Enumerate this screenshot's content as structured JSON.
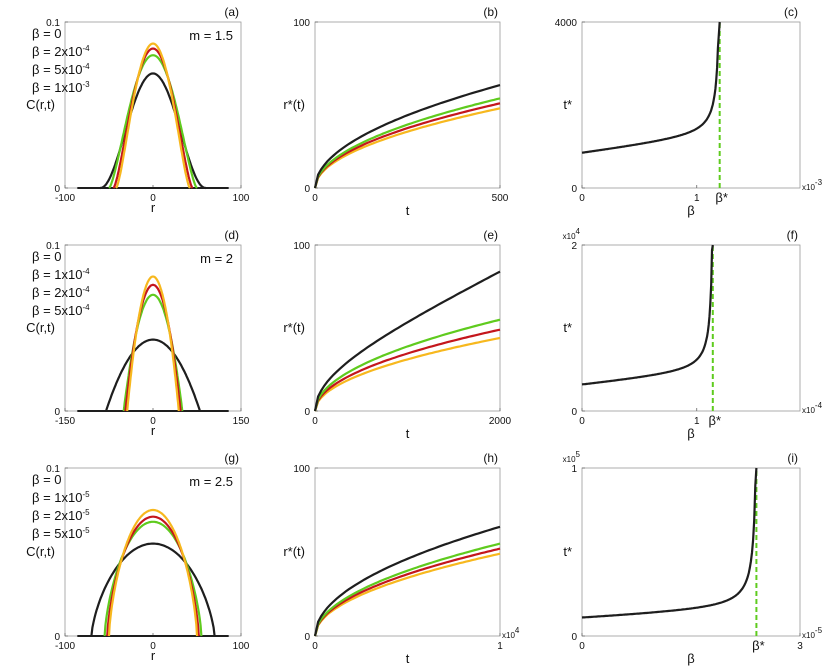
{
  "colors": {
    "orange": "#F7B81E",
    "red": "#C4161C",
    "green": "#5FCB1E",
    "black": "#1E1E1E"
  },
  "chart_data": [
    {
      "type": "line",
      "panel": "(a)",
      "kind": "profile",
      "xlabel": "r",
      "ylabel": "C(r,t)",
      "xlim": [
        -100,
        100
      ],
      "ylim": [
        0,
        0.1
      ],
      "xticks": [
        "-100",
        "0",
        "100"
      ],
      "yticks": [
        "0",
        "0.1"
      ],
      "annotation": "m = 1.5",
      "series": [
        {
          "name": "β = 0",
          "peak": 0.087,
          "halfwidth": 42,
          "shape": "m15"
        },
        {
          "name": "β = 2x10⁻⁴",
          "peak": 0.084,
          "halfwidth": 45,
          "shape": "m15"
        },
        {
          "name": "β = 5x10⁻⁴",
          "peak": 0.08,
          "halfwidth": 50,
          "shape": "m15"
        },
        {
          "name": "β = 1x10⁻³",
          "peak": 0.069,
          "halfwidth": 60,
          "shape": "m15"
        }
      ],
      "legend": [
        "β = 0",
        "β = 2x10",
        "β = 5x10",
        "β = 1x10"
      ],
      "legend_exp": [
        "-4",
        "-4",
        "-3"
      ]
    },
    {
      "type": "line",
      "panel": "(b)",
      "kind": "growth",
      "xlabel": "t",
      "ylabel": "r*(t)",
      "xlim": [
        0,
        500
      ],
      "ylim": [
        0,
        100
      ],
      "xticks": [
        "0",
        "500"
      ],
      "yticks": [
        "0",
        "100"
      ],
      "series": [
        {
          "name": "β = 0",
          "end": 48
        },
        {
          "name": "β = 2x10⁻⁴",
          "end": 51
        },
        {
          "name": "β = 5x10⁻⁴",
          "end": 54
        },
        {
          "name": "β = 1x10⁻³",
          "end": 62
        }
      ]
    },
    {
      "type": "line",
      "panel": "(c)",
      "kind": "blowup",
      "xlabel": "β",
      "ylabel": "t*",
      "xlim": [
        0,
        1.9
      ],
      "ylim": [
        0,
        4000
      ],
      "xticks": [
        "0",
        "1"
      ],
      "yticks": [
        "0",
        "4000"
      ],
      "scale": "x10",
      "scale_exp": "-3",
      "marker": "β*",
      "beta_star": 1.2,
      "t0": 850
    },
    {
      "type": "line",
      "panel": "(d)",
      "kind": "profile",
      "xlabel": "r",
      "ylabel": "C(r,t)",
      "xlim": [
        -150,
        150
      ],
      "ylim": [
        0,
        0.1
      ],
      "xticks": [
        "-150",
        "0",
        "150"
      ],
      "yticks": [
        "0",
        "0.1"
      ],
      "annotation": "m = 2",
      "series": [
        {
          "name": "β = 0",
          "peak": 0.081,
          "halfwidth": 44,
          "shape": "m2"
        },
        {
          "name": "β = 1x10⁻⁴",
          "peak": 0.076,
          "halfwidth": 47,
          "shape": "m2"
        },
        {
          "name": "β = 2x10⁻⁴",
          "peak": 0.07,
          "halfwidth": 50,
          "shape": "m2"
        },
        {
          "name": "β = 5x10⁻⁴",
          "peak": 0.043,
          "halfwidth": 80,
          "shape": "m2"
        }
      ],
      "legend": [
        "β = 0",
        "β = 1x10",
        "β = 2x10",
        "β = 5x10"
      ],
      "legend_exp": [
        "-4",
        "-4",
        "-4"
      ]
    },
    {
      "type": "line",
      "panel": "(e)",
      "kind": "growth",
      "xlabel": "t",
      "ylabel": "r*(t)",
      "xlim": [
        0,
        2000
      ],
      "ylim": [
        0,
        100
      ],
      "xticks": [
        "0",
        "2000"
      ],
      "yticks": [
        "0",
        "100"
      ],
      "series": [
        {
          "name": "β = 0",
          "end": 44
        },
        {
          "name": "β = 1x10⁻⁴",
          "end": 49
        },
        {
          "name": "β = 2x10⁻⁴",
          "end": 55
        },
        {
          "name": "β = 5x10⁻⁴",
          "end": 84
        }
      ]
    },
    {
      "type": "line",
      "panel": "(f)",
      "kind": "blowup",
      "xlabel": "β",
      "ylabel": "t*",
      "xlim": [
        0,
        1.9
      ],
      "ylim": [
        0,
        2
      ],
      "xticks": [
        "0",
        "1"
      ],
      "yticks": [
        "0",
        "2"
      ],
      "scale": "x10",
      "scale_exp": "-4",
      "yscale": "x10",
      "yscale_exp": "4",
      "marker": "β*",
      "beta_star": 1.14,
      "t0": 0.32
    },
    {
      "type": "line",
      "panel": "(g)",
      "kind": "profile",
      "xlabel": "r",
      "ylabel": "C(r,t)",
      "xlim": [
        -100,
        100
      ],
      "ylim": [
        0,
        0.1
      ],
      "xticks": [
        "-100",
        "0",
        "100"
      ],
      "yticks": [
        "0",
        "0.1"
      ],
      "annotation": "m = 2.5",
      "series": [
        {
          "name": "β = 0",
          "peak": 0.075,
          "halfwidth": 50,
          "shape": "m25"
        },
        {
          "name": "β = 1x10⁻⁵",
          "peak": 0.071,
          "halfwidth": 52,
          "shape": "m25"
        },
        {
          "name": "β = 2x10⁻⁵",
          "peak": 0.068,
          "halfwidth": 55,
          "shape": "m25"
        },
        {
          "name": "β = 5x10⁻⁵",
          "peak": 0.055,
          "halfwidth": 70,
          "shape": "m25"
        }
      ],
      "legend": [
        "β = 0",
        "β = 1x10",
        "β = 2x10",
        "β = 5x10"
      ],
      "legend_exp": [
        "-5",
        "-5",
        "-5"
      ]
    },
    {
      "type": "line",
      "panel": "(h)",
      "kind": "growth",
      "xlabel": "t",
      "ylabel": "r*(t)",
      "xlim": [
        0,
        1
      ],
      "ylim": [
        0,
        100
      ],
      "xticks": [
        "0",
        "1"
      ],
      "yticks": [
        "0",
        "100"
      ],
      "scale": "x10",
      "scale_exp": "4",
      "series": [
        {
          "name": "β = 0",
          "end": 49
        },
        {
          "name": "β = 1x10⁻⁵",
          "end": 52
        },
        {
          "name": "β = 2x10⁻⁵",
          "end": 55
        },
        {
          "name": "β = 5x10⁻⁵",
          "end": 65
        }
      ]
    },
    {
      "type": "line",
      "panel": "(i)",
      "kind": "blowup",
      "xlabel": "β",
      "ylabel": "t*",
      "xlim": [
        0,
        3
      ],
      "ylim": [
        0,
        1
      ],
      "xticks": [
        "0",
        "3"
      ],
      "yticks": [
        "0",
        "1"
      ],
      "scale": "x10",
      "scale_exp": "-5",
      "yscale": "x10",
      "yscale_exp": "5",
      "marker": "β*",
      "beta_star": 2.4,
      "t0": 0.11
    }
  ]
}
